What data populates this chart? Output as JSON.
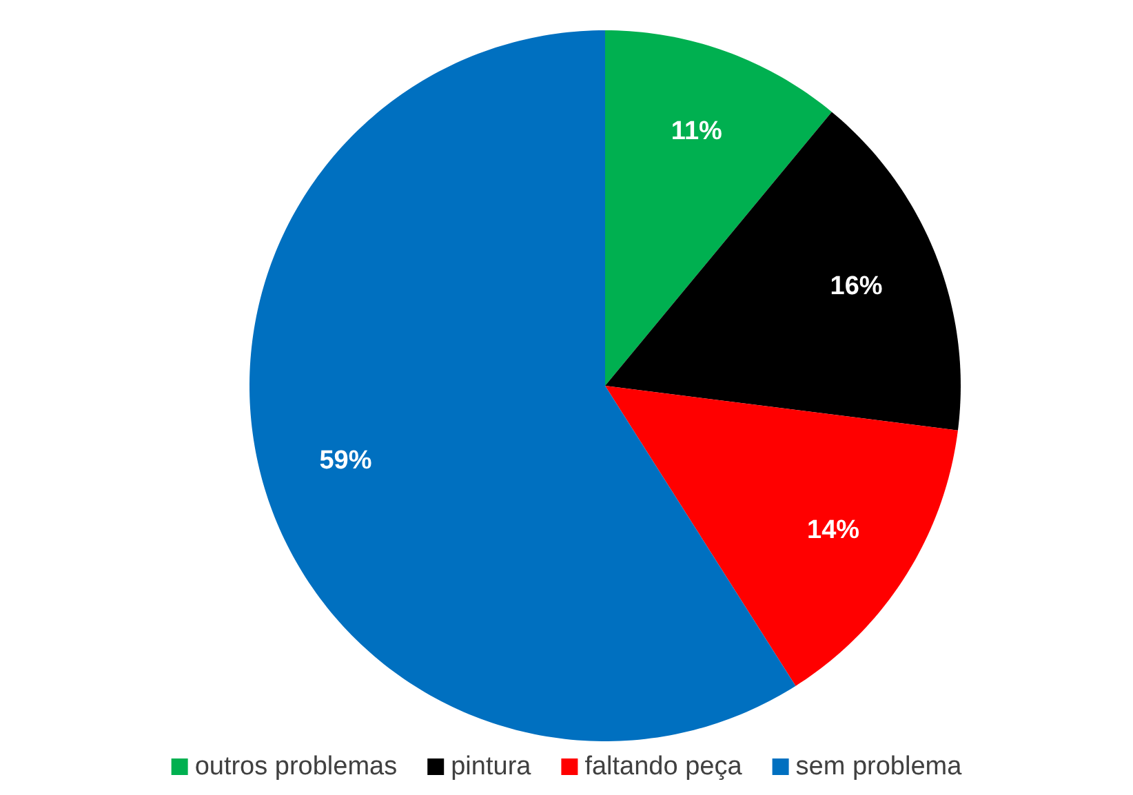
{
  "chart_data": {
    "type": "pie",
    "categories": [
      "outros problemas",
      "pintura",
      "faltando peça",
      "sem problema"
    ],
    "values": [
      11,
      16,
      14,
      59
    ],
    "value_labels": [
      "11%",
      "16%",
      "14%",
      "59%"
    ],
    "data_labels": true,
    "colors": [
      "#00b050",
      "#000000",
      "#ff0000",
      "#0070c0"
    ],
    "legend": "bottom"
  }
}
